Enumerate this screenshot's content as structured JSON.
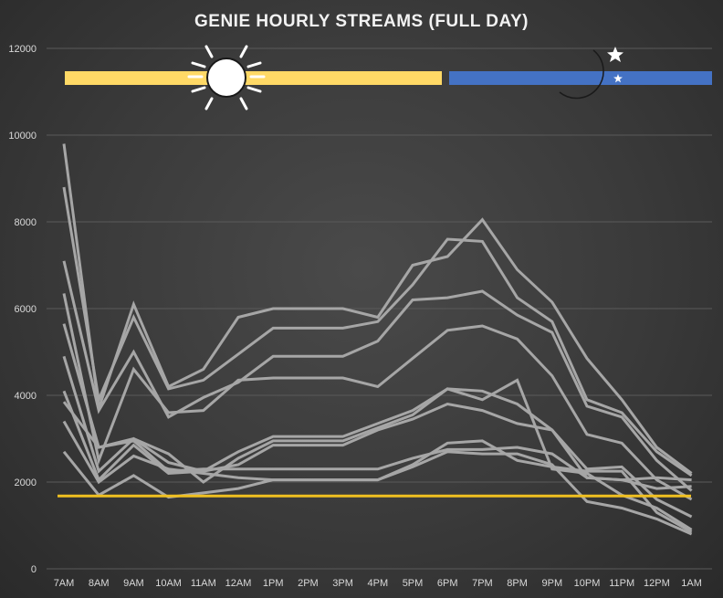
{
  "chart_data": {
    "type": "line",
    "title": "GENIE HOURLY STREAMS (FULL DAY)",
    "xlabel": "",
    "ylabel": "",
    "categories": [
      "7AM",
      "8AM",
      "9AM",
      "10AM",
      "11AM",
      "12AM",
      "1PM",
      "2PM",
      "3PM",
      "4PM",
      "5PM",
      "6PM",
      "7PM",
      "8PM",
      "9PM",
      "10PM",
      "11PM",
      "12PM",
      "1AM"
    ],
    "ylim": [
      0,
      12000
    ],
    "yticks": [
      0,
      2000,
      4000,
      6000,
      8000,
      10000,
      12000
    ],
    "grid": true,
    "series_color": "#a6a6a6",
    "series": [
      {
        "values": [
          9800,
          3700,
          6100,
          4200,
          4600,
          5800,
          6000,
          6000,
          6000,
          5800,
          7000,
          7200,
          8050,
          6900,
          6150,
          4850,
          3900,
          2800,
          2200
        ]
      },
      {
        "values": [
          8800,
          3900,
          5800,
          4150,
          4350,
          4950,
          5550,
          5550,
          5550,
          5700,
          6550,
          7600,
          7550,
          6250,
          5700,
          3900,
          3600,
          2700,
          2150
        ]
      },
      {
        "values": [
          7100,
          3650,
          5000,
          3500,
          3950,
          4300,
          4900,
          4900,
          4900,
          5250,
          6200,
          6250,
          6400,
          5850,
          5450,
          3750,
          3500,
          2500,
          1800
        ]
      },
      {
        "values": [
          6350,
          2500,
          4600,
          3600,
          3650,
          4350,
          4400,
          4400,
          4400,
          4200,
          4850,
          5500,
          5600,
          5300,
          4450,
          3100,
          2900,
          2050,
          1600
        ]
      },
      {
        "values": [
          5650,
          2800,
          3000,
          2450,
          2250,
          2700,
          3050,
          3050,
          3050,
          3350,
          3650,
          4150,
          3900,
          4350,
          2300,
          2200,
          1700,
          1400,
          900
        ]
      },
      {
        "values": [
          4900,
          2250,
          3000,
          2650,
          2000,
          2550,
          2950,
          2950,
          2950,
          3250,
          3550,
          4150,
          4100,
          3800,
          3200,
          2100,
          2050,
          1850,
          1900
        ]
      },
      {
        "values": [
          4100,
          2050,
          2850,
          2200,
          2250,
          2400,
          2850,
          2850,
          2850,
          3200,
          3450,
          3800,
          3650,
          3350,
          3200,
          2300,
          2350,
          1600,
          1200
        ]
      },
      {
        "values": [
          3850,
          2800,
          2950,
          2250,
          2300,
          2300,
          2300,
          2300,
          2300,
          2300,
          2550,
          2750,
          2750,
          2800,
          2650,
          2100,
          2050,
          2100,
          2050
        ]
      },
      {
        "values": [
          3400,
          2000,
          2600,
          2300,
          2200,
          2100,
          2050,
          2050,
          2050,
          2050,
          2400,
          2900,
          2950,
          2500,
          2350,
          2250,
          2250,
          1300,
          850
        ]
      },
      {
        "values": [
          2700,
          1700,
          2150,
          1650,
          1750,
          1850,
          2050,
          2050,
          2050,
          2050,
          2350,
          2700,
          2650,
          2650,
          2400,
          1550,
          1400,
          1150,
          800
        ]
      }
    ],
    "reference_line": {
      "value": 1680,
      "color": "#f0c020"
    },
    "day_bar_color": "#ffd966",
    "night_bar_color": "#4472c4",
    "day_icon": "sun-icon",
    "night_icon": "moon-stars-icon"
  }
}
